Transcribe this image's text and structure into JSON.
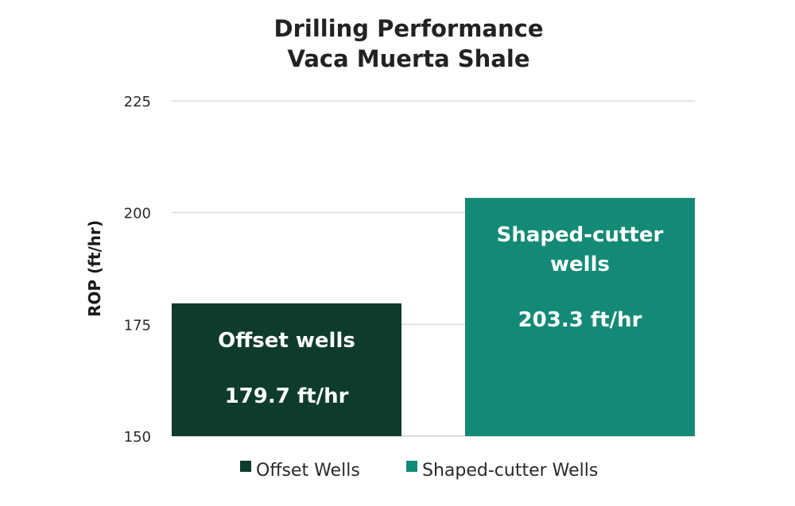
{
  "chart_data": {
    "type": "bar",
    "title": [
      "Drilling Performance",
      "Vaca Muerta Shale"
    ],
    "ylabel": "ROP (ft/hr)",
    "ylim": [
      150,
      225
    ],
    "yticks": [
      "150",
      "175",
      "200",
      "225"
    ],
    "grid": true,
    "legend_position": "bottom",
    "categories": [
      "Offset Wells",
      "Shaped-cutter Wells"
    ],
    "values": [
      179.7,
      203.3
    ],
    "colors": [
      "#0e3b2e",
      "#138a76"
    ],
    "bar_labels": [
      {
        "name": [
          "Offset wells"
        ],
        "value": "179.7 ft/hr"
      },
      {
        "name": [
          "Shaped-cutter",
          "wells"
        ],
        "value": "203.3 ft/hr"
      }
    ]
  }
}
